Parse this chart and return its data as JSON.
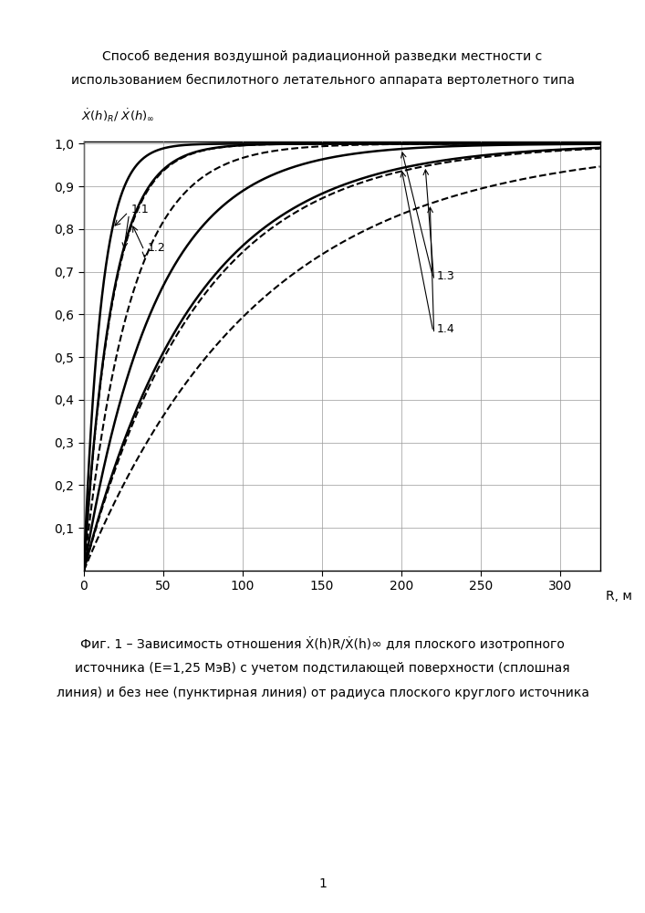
{
  "title_line1": "Способ ведения воздушной радиационной разведки местности с",
  "title_line2": "использованием беспилотного летательного аппарата вертолетного типа",
  "xlabel_end": "R, м",
  "xlim": [
    0,
    325
  ],
  "ylim": [
    0,
    1.0
  ],
  "xticks": [
    0,
    50,
    100,
    150,
    200,
    250,
    300
  ],
  "xticklabels": [
    "0",
    "50",
    "100",
    "150",
    "200",
    "250",
    "300"
  ],
  "yticks": [
    0.1,
    0.2,
    0.3,
    0.4,
    0.5,
    0.6,
    0.7,
    0.8,
    0.9,
    1.0
  ],
  "yticklabels": [
    "0,1",
    "0,2",
    "0,3",
    "0,4",
    "0,5",
    "0,6",
    "0,7",
    "0,8",
    "0,9",
    "1,0"
  ],
  "caption_line1": "Фиг. 1 – Зависимость отношения Ẋ(h)R/Ẋ(h)∞ для плоского изотропного",
  "caption_line2": "источника (E=1,25 МэВ) с учетом подстилающей поверхности (сплошная",
  "caption_line3": "линия) и без нее (пунктирная линия) от радиуса плоского круглого источника",
  "page_number": "1",
  "curve_params": [
    [
      0.09,
      0.055
    ],
    [
      0.056,
      0.034
    ],
    [
      0.022,
      0.0137
    ],
    [
      0.0143,
      0.009
    ]
  ],
  "label_configs": [
    [
      "1.1",
      18,
      25,
      28,
      0.84
    ],
    [
      "1.2",
      30,
      38,
      38,
      0.75
    ],
    [
      "1.3",
      200,
      215,
      220,
      0.685
    ],
    [
      "1.4",
      200,
      218,
      220,
      0.56
    ]
  ],
  "bg_color": "#ffffff",
  "line_color": "#000000",
  "grid_color": "#999999",
  "figsize": [
    7.07,
    10.0
  ],
  "dpi": 100
}
